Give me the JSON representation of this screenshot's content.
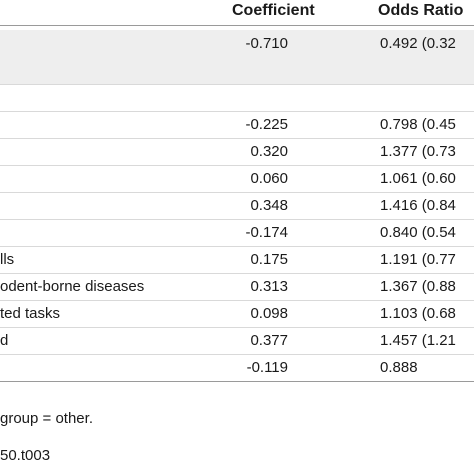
{
  "table": {
    "headers": {
      "coefficient": "Coefficient",
      "odds_ratio": "Odds Ratio"
    },
    "rows": [
      {
        "label": "",
        "coefficient": "-0.710",
        "odds_ratio": "0.492 (0.32"
      },
      {
        "label": "",
        "coefficient": "",
        "odds_ratio": ""
      },
      {
        "label": "",
        "coefficient": "",
        "odds_ratio": ""
      },
      {
        "label": "",
        "coefficient": "-0.225",
        "odds_ratio": "0.798 (0.45"
      },
      {
        "label": "",
        "coefficient": "0.320",
        "odds_ratio": "1.377 (0.73"
      },
      {
        "label": "",
        "coefficient": "0.060",
        "odds_ratio": "1.061 (0.60"
      },
      {
        "label": "",
        "coefficient": "0.348",
        "odds_ratio": "1.416 (0.84"
      },
      {
        "label": "",
        "coefficient": "-0.174",
        "odds_ratio": "0.840 (0.54"
      },
      {
        "label": "lls",
        "coefficient": "0.175",
        "odds_ratio": "1.191 (0.77"
      },
      {
        "label": "odent-borne diseases",
        "coefficient": "0.313",
        "odds_ratio": "1.367 (0.88"
      },
      {
        "label": "ted tasks",
        "coefficient": "0.098",
        "odds_ratio": "1.103 (0.68"
      },
      {
        "label": "d",
        "coefficient": "0.377",
        "odds_ratio": "1.457 (1.21"
      },
      {
        "label": "",
        "coefficient": "-0.119",
        "odds_ratio": "0.888"
      }
    ],
    "footnote": "group = other.",
    "doi": "50.t003"
  }
}
